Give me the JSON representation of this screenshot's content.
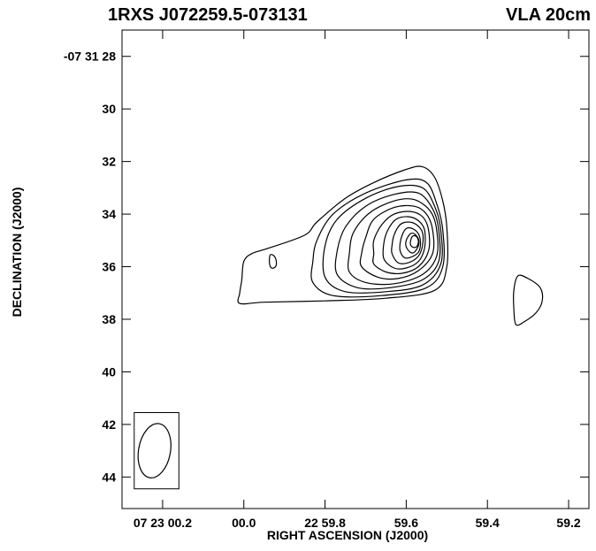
{
  "chart_data": {
    "type": "contour",
    "title": "1RXS J072259.5-073131",
    "subtitle": "VLA 20cm",
    "xlabel": "RIGHT ASCENSION (J2000)",
    "ylabel": "DECLINATION (J2000)",
    "x_units": "arcsec offset from 07 23 00.0 (RA seconds converted, negative = east)",
    "y_units": "arcsec of declination beyond -07 31 00",
    "xlim": [
      -0.3,
      0.85
    ],
    "ylim": [
      27.0,
      45.2
    ],
    "x_ticks": [
      {
        "value": -0.2,
        "label": "07 23 00.2"
      },
      {
        "value": 0.0,
        "label": "00.0"
      },
      {
        "value": 0.2,
        "label": "22 59.8"
      },
      {
        "value": 0.4,
        "label": "59.6"
      },
      {
        "value": 0.6,
        "label": "59.4"
      },
      {
        "value": 0.8,
        "label": "59.2"
      }
    ],
    "y_ticks": [
      {
        "value": 28,
        "label": "-07 31 28"
      },
      {
        "value": 30,
        "label": "30"
      },
      {
        "value": 32,
        "label": "32"
      },
      {
        "value": 34,
        "label": "34"
      },
      {
        "value": 36,
        "label": "36"
      },
      {
        "value": 38,
        "label": "38"
      },
      {
        "value": 40,
        "label": "40"
      },
      {
        "value": 42,
        "label": "42"
      },
      {
        "value": 44,
        "label": "44"
      }
    ],
    "main_source": {
      "ra_offset": 0.45,
      "dec": 34.7
    },
    "contours": [
      {
        "name": "outer-envelope",
        "points": [
          [
            -0.01,
            37.4
          ],
          [
            0.05,
            37.35
          ],
          [
            0.2,
            37.3
          ],
          [
            0.35,
            37.2
          ],
          [
            0.47,
            36.9
          ],
          [
            0.5,
            36.0
          ],
          [
            0.5,
            34.5
          ],
          [
            0.49,
            33.5
          ],
          [
            0.47,
            32.6
          ],
          [
            0.44,
            32.2
          ],
          [
            0.4,
            32.3
          ],
          [
            0.32,
            32.8
          ],
          [
            0.25,
            33.4
          ],
          [
            0.18,
            34.3
          ],
          [
            0.15,
            34.8
          ],
          [
            0.06,
            35.3
          ],
          [
            0.02,
            35.5
          ],
          [
            0.0,
            35.8
          ],
          [
            -0.005,
            36.5
          ],
          [
            -0.01,
            37.0
          ]
        ]
      },
      {
        "name": "inner-ring-1",
        "points": [
          [
            0.17,
            36.6
          ],
          [
            0.22,
            37.1
          ],
          [
            0.34,
            37.1
          ],
          [
            0.45,
            36.8
          ],
          [
            0.49,
            36.0
          ],
          [
            0.49,
            34.6
          ],
          [
            0.475,
            33.6
          ],
          [
            0.45,
            32.8
          ],
          [
            0.4,
            32.7
          ],
          [
            0.3,
            33.2
          ],
          [
            0.22,
            34.0
          ],
          [
            0.18,
            35.0
          ],
          [
            0.17,
            35.8
          ]
        ]
      },
      {
        "name": "inner-ring-2",
        "points": [
          [
            0.2,
            36.4
          ],
          [
            0.25,
            36.95
          ],
          [
            0.35,
            36.95
          ],
          [
            0.44,
            36.7
          ],
          [
            0.485,
            35.9
          ],
          [
            0.485,
            34.6
          ],
          [
            0.47,
            33.7
          ],
          [
            0.44,
            33.0
          ],
          [
            0.38,
            32.95
          ],
          [
            0.3,
            33.4
          ],
          [
            0.23,
            34.2
          ],
          [
            0.2,
            35.2
          ]
        ]
      },
      {
        "name": "inner-ring-3",
        "points": [
          [
            0.23,
            36.3
          ],
          [
            0.28,
            36.8
          ],
          [
            0.36,
            36.8
          ],
          [
            0.44,
            36.5
          ],
          [
            0.48,
            35.8
          ],
          [
            0.48,
            34.6
          ],
          [
            0.465,
            33.8
          ],
          [
            0.43,
            33.2
          ],
          [
            0.37,
            33.25
          ],
          [
            0.3,
            33.7
          ],
          [
            0.25,
            34.5
          ],
          [
            0.23,
            35.4
          ]
        ]
      },
      {
        "name": "inner-ring-4",
        "points": [
          [
            0.26,
            36.2
          ],
          [
            0.3,
            36.6
          ],
          [
            0.37,
            36.65
          ],
          [
            0.44,
            36.3
          ],
          [
            0.475,
            35.6
          ],
          [
            0.475,
            34.6
          ],
          [
            0.46,
            33.9
          ],
          [
            0.42,
            33.45
          ],
          [
            0.37,
            33.5
          ],
          [
            0.31,
            33.95
          ],
          [
            0.27,
            34.7
          ],
          [
            0.26,
            35.5
          ]
        ]
      },
      {
        "name": "inner-ring-5",
        "points": [
          [
            0.29,
            36.0
          ],
          [
            0.33,
            36.4
          ],
          [
            0.38,
            36.45
          ],
          [
            0.43,
            36.15
          ],
          [
            0.465,
            35.5
          ],
          [
            0.465,
            34.6
          ],
          [
            0.45,
            34.0
          ],
          [
            0.42,
            33.7
          ],
          [
            0.37,
            33.75
          ],
          [
            0.32,
            34.2
          ],
          [
            0.3,
            34.9
          ],
          [
            0.29,
            35.5
          ]
        ]
      },
      {
        "name": "inner-ring-6",
        "points": [
          [
            0.32,
            35.9
          ],
          [
            0.35,
            36.2
          ],
          [
            0.39,
            36.25
          ],
          [
            0.43,
            36.0
          ],
          [
            0.455,
            35.4
          ],
          [
            0.455,
            34.6
          ],
          [
            0.44,
            34.1
          ],
          [
            0.41,
            33.9
          ],
          [
            0.37,
            34.0
          ],
          [
            0.34,
            34.4
          ],
          [
            0.32,
            35.0
          ],
          [
            0.32,
            35.5
          ]
        ]
      },
      {
        "name": "inner-ring-7",
        "points": [
          [
            0.345,
            35.7
          ],
          [
            0.37,
            36.05
          ],
          [
            0.4,
            36.05
          ],
          [
            0.43,
            35.8
          ],
          [
            0.445,
            35.3
          ],
          [
            0.445,
            34.6
          ],
          [
            0.43,
            34.25
          ],
          [
            0.405,
            34.1
          ],
          [
            0.375,
            34.2
          ],
          [
            0.355,
            34.6
          ],
          [
            0.345,
            35.1
          ]
        ]
      },
      {
        "name": "inner-ring-8",
        "points": [
          [
            0.365,
            35.5
          ],
          [
            0.38,
            35.85
          ],
          [
            0.405,
            35.85
          ],
          [
            0.43,
            35.6
          ],
          [
            0.44,
            35.2
          ],
          [
            0.44,
            34.7
          ],
          [
            0.425,
            34.4
          ],
          [
            0.405,
            34.3
          ],
          [
            0.385,
            34.4
          ],
          [
            0.37,
            34.8
          ],
          [
            0.365,
            35.2
          ]
        ]
      },
      {
        "name": "inner-ring-9",
        "points": [
          [
            0.385,
            35.4
          ],
          [
            0.395,
            35.65
          ],
          [
            0.41,
            35.65
          ],
          [
            0.43,
            35.45
          ],
          [
            0.435,
            35.1
          ],
          [
            0.43,
            34.75
          ],
          [
            0.415,
            34.55
          ],
          [
            0.4,
            34.55
          ],
          [
            0.39,
            34.8
          ],
          [
            0.385,
            35.1
          ]
        ]
      },
      {
        "name": "inner-ring-10",
        "points": [
          [
            0.4,
            35.25
          ],
          [
            0.41,
            35.45
          ],
          [
            0.42,
            35.45
          ],
          [
            0.43,
            35.2
          ],
          [
            0.43,
            34.95
          ],
          [
            0.42,
            34.75
          ],
          [
            0.41,
            34.75
          ],
          [
            0.4,
            35.0
          ]
        ]
      },
      {
        "name": "peak-contour",
        "points": [
          [
            0.41,
            35.1
          ],
          [
            0.415,
            35.25
          ],
          [
            0.425,
            35.25
          ],
          [
            0.43,
            35.05
          ],
          [
            0.425,
            34.85
          ],
          [
            0.415,
            34.85
          ]
        ]
      },
      {
        "name": "west-knot",
        "points": [
          [
            0.675,
            36.35
          ],
          [
            0.7,
            36.45
          ],
          [
            0.73,
            36.8
          ],
          [
            0.735,
            37.3
          ],
          [
            0.72,
            37.75
          ],
          [
            0.69,
            38.1
          ],
          [
            0.67,
            38.2
          ],
          [
            0.665,
            37.6
          ],
          [
            0.665,
            36.9
          ]
        ]
      },
      {
        "name": "east-knot",
        "points": [
          [
            0.065,
            35.55
          ],
          [
            0.075,
            35.6
          ],
          [
            0.08,
            35.8
          ],
          [
            0.078,
            36.0
          ],
          [
            0.068,
            36.05
          ],
          [
            0.063,
            35.85
          ]
        ]
      }
    ],
    "beam": {
      "ra_offset": -0.22,
      "dec": 43.0,
      "box_x": [
        -0.27,
        -0.16
      ],
      "box_y": [
        41.55,
        44.45
      ]
    },
    "grid": false,
    "legend": "none"
  }
}
